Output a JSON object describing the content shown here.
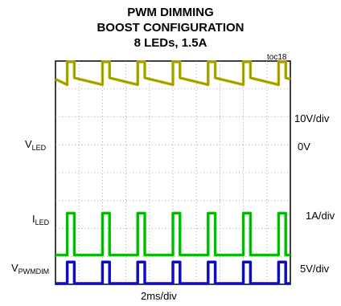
{
  "title_lines": [
    "PWM DIMMING",
    "BOOST CONFIGURATION",
    "8 LEDs, 1.5A"
  ],
  "toc": "toc18",
  "x_scale": "2ms/div",
  "channels": {
    "vled": {
      "name_main": "V",
      "name_sub": "LED",
      "scale": "10V/div",
      "ref": "0V",
      "color": "#b5b200"
    },
    "iled": {
      "name_main": "I",
      "name_sub": "LED",
      "scale": "1A/div",
      "color": "#00d000"
    },
    "vpwmdim": {
      "name_main": "V",
      "name_sub": "PWMDIM",
      "scale": "5V/div",
      "color": "#1010d0"
    }
  },
  "chart_data": {
    "type": "line",
    "x_unit": "ms",
    "x_divisions": 10,
    "x_per_div": 2,
    "y_divisions": 8,
    "grid": true,
    "pwm_period_ms": 3.0,
    "pwm_high_ms": [
      [
        1.0,
        1.6
      ],
      [
        4.0,
        4.6
      ],
      [
        7.0,
        7.6
      ],
      [
        10.0,
        10.6
      ],
      [
        13.0,
        13.6
      ],
      [
        16.0,
        16.6
      ],
      [
        19.0,
        19.6
      ]
    ],
    "series": [
      {
        "name": "VLED",
        "unit": "V",
        "volts_per_div": 10,
        "x": [
          0,
          1.0,
          1.0,
          1.6,
          1.6,
          4.0,
          4.0,
          4.6,
          4.6,
          7.0,
          7.0,
          7.6,
          7.6,
          10.0,
          10.0,
          10.6,
          10.6,
          13.0,
          13.0,
          13.6,
          13.6,
          16.0,
          16.0,
          16.6,
          16.6,
          19.0,
          19.0,
          19.6,
          19.6,
          20
        ],
        "y": [
          26.5,
          24.5,
          36.0,
          36.0,
          27.0,
          24.5,
          36.0,
          36.0,
          27.0,
          24.5,
          36.0,
          36.0,
          27.0,
          24.5,
          36.0,
          36.0,
          27.0,
          24.5,
          36.0,
          36.0,
          27.0,
          24.5,
          36.0,
          36.0,
          27.0,
          24.5,
          36.0,
          36.0,
          27.0,
          26.5
        ]
      },
      {
        "name": "ILED",
        "unit": "A",
        "amps_per_div": 1,
        "x": [
          0,
          1.0,
          1.0,
          1.6,
          1.6,
          4.0,
          4.0,
          4.6,
          4.6,
          7.0,
          7.0,
          7.6,
          7.6,
          10.0,
          10.0,
          10.6,
          10.6,
          13.0,
          13.0,
          13.6,
          13.6,
          16.0,
          16.0,
          16.6,
          16.6,
          19.0,
          19.0,
          19.6,
          19.6,
          20
        ],
        "y": [
          0,
          0,
          1.5,
          1.5,
          0,
          0,
          1.5,
          1.5,
          0,
          0,
          1.5,
          1.5,
          0,
          0,
          1.5,
          1.5,
          0,
          0,
          1.5,
          1.5,
          0,
          0,
          1.5,
          1.5,
          0,
          0,
          1.5,
          1.5,
          0,
          0
        ]
      },
      {
        "name": "VPWMDIM",
        "unit": "V",
        "volts_per_div": 5,
        "x": [
          0,
          1.0,
          1.0,
          1.6,
          1.6,
          4.0,
          4.0,
          4.6,
          4.6,
          7.0,
          7.0,
          7.6,
          7.6,
          10.0,
          10.0,
          10.6,
          10.6,
          13.0,
          13.0,
          13.6,
          13.6,
          16.0,
          16.0,
          16.6,
          16.6,
          19.0,
          19.0,
          19.6,
          19.6,
          20
        ],
        "y": [
          0,
          0,
          5,
          5,
          0,
          0,
          5,
          5,
          0,
          0,
          5,
          5,
          0,
          0,
          5,
          5,
          0,
          0,
          5,
          5,
          0,
          0,
          5,
          5,
          0,
          0,
          5,
          5,
          0,
          0
        ]
      }
    ]
  }
}
